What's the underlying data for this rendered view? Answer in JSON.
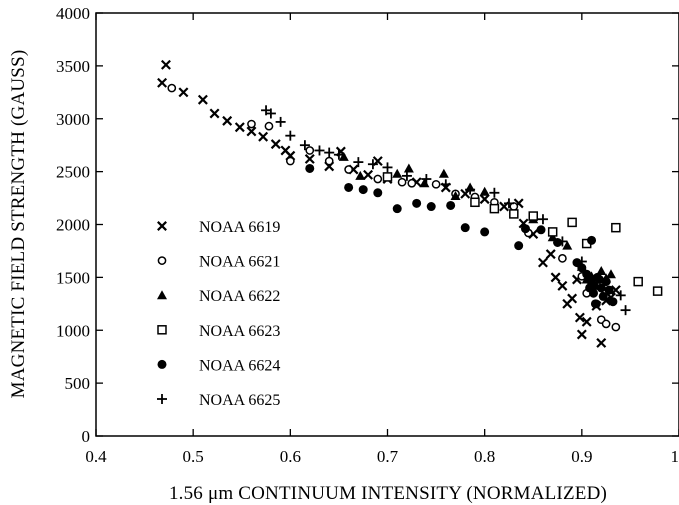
{
  "chart_data": {
    "type": "scatter",
    "title": "",
    "xlabel": "1.56 μm CONTINUUM INTENSITY (NORMALIZED)",
    "ylabel": "MAGNETIC FIELD STRENGTH (GAUSS)",
    "xlim": [
      0.4,
      1.0
    ],
    "ylim": [
      0,
      4000
    ],
    "x_ticks": [
      0.4,
      0.5,
      0.6,
      0.7,
      0.8,
      0.9,
      1.0
    ],
    "x_tick_labels": [
      "0.4",
      "0.5",
      "0.6",
      "0.7",
      "0.8",
      "0.9",
      "1"
    ],
    "y_ticks": [
      0,
      500,
      1000,
      1500,
      2000,
      2500,
      3000,
      3500,
      4000
    ],
    "y_tick_labels": [
      "0",
      "500",
      "1000",
      "1500",
      "2000",
      "2500",
      "3000",
      "3500",
      "4000"
    ],
    "grid": false,
    "legend_position": "left",
    "series": [
      {
        "name": "NOAA 6619",
        "marker": "x",
        "points": [
          [
            0.472,
            3510
          ],
          [
            0.468,
            3340
          ],
          [
            0.49,
            3250
          ],
          [
            0.51,
            3180
          ],
          [
            0.522,
            3050
          ],
          [
            0.535,
            2980
          ],
          [
            0.548,
            2920
          ],
          [
            0.56,
            2880
          ],
          [
            0.572,
            2830
          ],
          [
            0.585,
            2760
          ],
          [
            0.595,
            2700
          ],
          [
            0.6,
            2650
          ],
          [
            0.62,
            2620
          ],
          [
            0.64,
            2550
          ],
          [
            0.652,
            2690
          ],
          [
            0.665,
            2520
          ],
          [
            0.68,
            2470
          ],
          [
            0.69,
            2600
          ],
          [
            0.7,
            2430
          ],
          [
            0.73,
            2400
          ],
          [
            0.76,
            2350
          ],
          [
            0.78,
            2290
          ],
          [
            0.8,
            2240
          ],
          [
            0.82,
            2170
          ],
          [
            0.835,
            2200
          ],
          [
            0.84,
            2010
          ],
          [
            0.85,
            1910
          ],
          [
            0.86,
            1640
          ],
          [
            0.868,
            1720
          ],
          [
            0.873,
            1500
          ],
          [
            0.88,
            1420
          ],
          [
            0.885,
            1250
          ],
          [
            0.89,
            1300
          ],
          [
            0.895,
            1480
          ],
          [
            0.898,
            1120
          ],
          [
            0.9,
            960
          ],
          [
            0.905,
            1080
          ],
          [
            0.91,
            1360
          ],
          [
            0.915,
            1230
          ],
          [
            0.92,
            880
          ],
          [
            0.925,
            1280
          ],
          [
            0.93,
            1310
          ],
          [
            0.935,
            1380
          ]
        ]
      },
      {
        "name": "NOAA 6621",
        "marker": "circle-open",
        "points": [
          [
            0.478,
            3290
          ],
          [
            0.56,
            2950
          ],
          [
            0.578,
            2930
          ],
          [
            0.6,
            2600
          ],
          [
            0.62,
            2700
          ],
          [
            0.64,
            2600
          ],
          [
            0.66,
            2520
          ],
          [
            0.69,
            2430
          ],
          [
            0.715,
            2400
          ],
          [
            0.725,
            2390
          ],
          [
            0.75,
            2380
          ],
          [
            0.77,
            2290
          ],
          [
            0.79,
            2260
          ],
          [
            0.81,
            2210
          ],
          [
            0.83,
            2170
          ],
          [
            0.845,
            1920
          ],
          [
            0.88,
            1680
          ],
          [
            0.9,
            1510
          ],
          [
            0.905,
            1350
          ],
          [
            0.91,
            1400
          ],
          [
            0.915,
            1250
          ],
          [
            0.92,
            1100
          ],
          [
            0.925,
            1060
          ],
          [
            0.935,
            1030
          ]
        ]
      },
      {
        "name": "NOAA 6622",
        "marker": "triangle-filled",
        "points": [
          [
            0.655,
            2640
          ],
          [
            0.672,
            2460
          ],
          [
            0.71,
            2480
          ],
          [
            0.722,
            2530
          ],
          [
            0.738,
            2390
          ],
          [
            0.758,
            2480
          ],
          [
            0.77,
            2270
          ],
          [
            0.785,
            2350
          ],
          [
            0.8,
            2310
          ],
          [
            0.85,
            2050
          ],
          [
            0.87,
            1880
          ],
          [
            0.885,
            1800
          ],
          [
            0.9,
            1600
          ],
          [
            0.905,
            1480
          ],
          [
            0.91,
            1510
          ],
          [
            0.915,
            1420
          ],
          [
            0.92,
            1560
          ],
          [
            0.925,
            1490
          ],
          [
            0.93,
            1530
          ]
        ]
      },
      {
        "name": "NOAA 6623",
        "marker": "square-open",
        "points": [
          [
            0.7,
            2450
          ],
          [
            0.79,
            2210
          ],
          [
            0.81,
            2150
          ],
          [
            0.83,
            2100
          ],
          [
            0.85,
            2080
          ],
          [
            0.87,
            1930
          ],
          [
            0.89,
            2020
          ],
          [
            0.905,
            1820
          ],
          [
            0.935,
            1970
          ],
          [
            0.958,
            1460
          ],
          [
            0.978,
            1370
          ]
        ]
      },
      {
        "name": "NOAA 6624",
        "marker": "circle-filled",
        "points": [
          [
            0.62,
            2530
          ],
          [
            0.66,
            2350
          ],
          [
            0.675,
            2330
          ],
          [
            0.69,
            2300
          ],
          [
            0.71,
            2150
          ],
          [
            0.73,
            2200
          ],
          [
            0.745,
            2170
          ],
          [
            0.765,
            2180
          ],
          [
            0.78,
            1970
          ],
          [
            0.8,
            1930
          ],
          [
            0.835,
            1800
          ],
          [
            0.842,
            1960
          ],
          [
            0.858,
            1950
          ],
          [
            0.875,
            1830
          ],
          [
            0.895,
            1640
          ],
          [
            0.9,
            1590
          ],
          [
            0.905,
            1530
          ],
          [
            0.908,
            1400
          ],
          [
            0.91,
            1450
          ],
          [
            0.912,
            1350
          ],
          [
            0.914,
            1250
          ],
          [
            0.916,
            1500
          ],
          [
            0.918,
            1480
          ],
          [
            0.92,
            1400
          ],
          [
            0.922,
            1320
          ],
          [
            0.925,
            1460
          ],
          [
            0.928,
            1380
          ],
          [
            0.932,
            1270
          ],
          [
            0.91,
            1850
          ]
        ]
      },
      {
        "name": "NOAA 6625",
        "marker": "plus",
        "points": [
          [
            0.575,
            3080
          ],
          [
            0.58,
            3050
          ],
          [
            0.59,
            2970
          ],
          [
            0.6,
            2840
          ],
          [
            0.615,
            2750
          ],
          [
            0.63,
            2700
          ],
          [
            0.64,
            2680
          ],
          [
            0.65,
            2660
          ],
          [
            0.67,
            2590
          ],
          [
            0.685,
            2570
          ],
          [
            0.7,
            2540
          ],
          [
            0.72,
            2460
          ],
          [
            0.74,
            2430
          ],
          [
            0.76,
            2380
          ],
          [
            0.785,
            2330
          ],
          [
            0.81,
            2300
          ],
          [
            0.825,
            2200
          ],
          [
            0.86,
            2050
          ],
          [
            0.88,
            1840
          ],
          [
            0.9,
            1650
          ],
          [
            0.94,
            1330
          ],
          [
            0.945,
            1190
          ]
        ]
      }
    ]
  }
}
